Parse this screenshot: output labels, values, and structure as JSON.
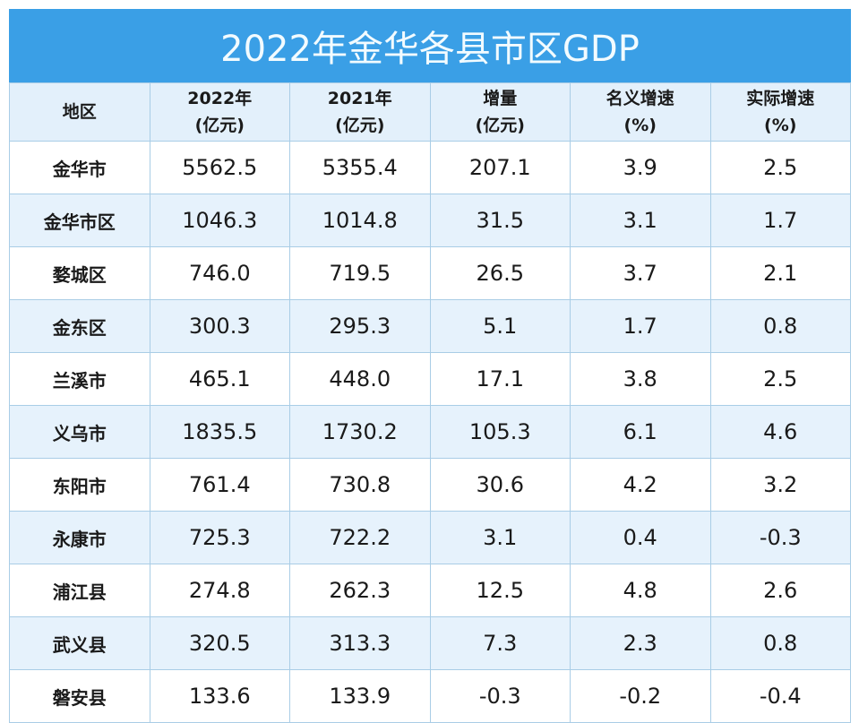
{
  "title": "2022年金华各县市区GDP",
  "headers": [
    {
      "line1": "地区",
      "line2": ""
    },
    {
      "line1": "2022年",
      "line2": "(亿元)"
    },
    {
      "line1": "2021年",
      "line2": "(亿元)"
    },
    {
      "line1": "增量",
      "line2": "(亿元)"
    },
    {
      "line1": "名义增速",
      "line2": "(%)"
    },
    {
      "line1": "实际增速",
      "line2": "(%)"
    }
  ],
  "rows": [
    [
      "金华市",
      "5562.5",
      "5355.4",
      "207.1",
      "3.9",
      "2.5"
    ],
    [
      "金华市区",
      "1046.3",
      "1014.8",
      "31.5",
      "3.1",
      "1.7"
    ],
    [
      "婺城区",
      "746.0",
      "719.5",
      "26.5",
      "3.7",
      "2.1"
    ],
    [
      "金东区",
      "300.3",
      "295.3",
      "5.1",
      "1.7",
      "0.8"
    ],
    [
      "兰溪市",
      "465.1",
      "448.0",
      "17.1",
      "3.8",
      "2.5"
    ],
    [
      "义乌市",
      "1835.5",
      "1730.2",
      "105.3",
      "6.1",
      "4.6"
    ],
    [
      "东阳市",
      "761.4",
      "730.8",
      "30.6",
      "4.2",
      "3.2"
    ],
    [
      "永康市",
      "725.3",
      "722.2",
      "3.1",
      "0.4",
      "-0.3"
    ],
    [
      "浦江县",
      "274.8",
      "262.3",
      "12.5",
      "4.8",
      "2.6"
    ],
    [
      "武义县",
      "320.5",
      "313.3",
      "7.3",
      "2.3",
      "0.8"
    ],
    [
      "磐安县",
      "133.6",
      "133.9",
      "-0.3",
      "-0.2",
      "-0.4"
    ]
  ],
  "colors": {
    "title_bg": "#3a9fe6",
    "alt_row": "#e6f2fc",
    "border": "#a9cde6"
  }
}
